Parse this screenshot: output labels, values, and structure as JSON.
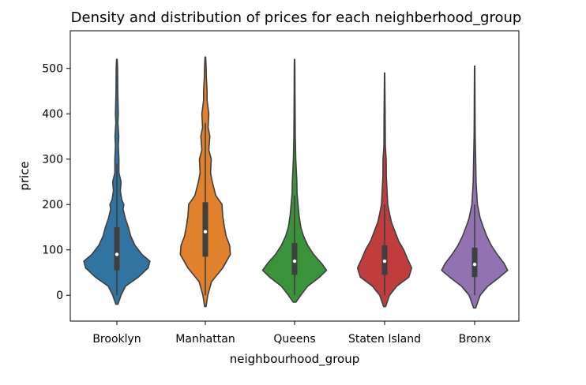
{
  "chart_data": {
    "type": "violin",
    "title": "Density and distribution of prices for each neighberhood_group",
    "xlabel": "neighbourhood_group",
    "ylabel": "price",
    "ylim": [
      -57,
      583
    ],
    "yticks": [
      0,
      100,
      200,
      300,
      400,
      500
    ],
    "ytick_labels": [
      "0",
      "100",
      "200",
      "300",
      "400",
      "500"
    ],
    "categories": [
      "Brooklyn",
      "Manhattan",
      "Queens",
      "Staten Island",
      "Bronx"
    ],
    "series": [
      {
        "name": "Brooklyn",
        "color": "#3274a1",
        "min": -20,
        "max": 520,
        "q1": 55,
        "median": 90,
        "q3": 150,
        "whisker_low": 0,
        "whisker_high": 290,
        "density": [
          [
            -20,
            0.03
          ],
          [
            0,
            0.12
          ],
          [
            20,
            0.25
          ],
          [
            40,
            0.62
          ],
          [
            60,
            0.9
          ],
          [
            75,
            0.95
          ],
          [
            90,
            0.72
          ],
          [
            110,
            0.52
          ],
          [
            130,
            0.4
          ],
          [
            150,
            0.33
          ],
          [
            170,
            0.24
          ],
          [
            190,
            0.18
          ],
          [
            200,
            0.2
          ],
          [
            210,
            0.14
          ],
          [
            230,
            0.1
          ],
          [
            250,
            0.12
          ],
          [
            270,
            0.06
          ],
          [
            300,
            0.06
          ],
          [
            330,
            0.04
          ],
          [
            350,
            0.055
          ],
          [
            380,
            0.03
          ],
          [
            400,
            0.04
          ],
          [
            450,
            0.025
          ],
          [
            500,
            0.02
          ],
          [
            520,
            0.01
          ]
        ]
      },
      {
        "name": "Manhattan",
        "color": "#e1812c",
        "min": -25,
        "max": 525,
        "q1": 85,
        "median": 140,
        "q3": 205,
        "whisker_low": 0,
        "whisker_high": 380,
        "density": [
          [
            -25,
            0.02
          ],
          [
            0,
            0.07
          ],
          [
            30,
            0.18
          ],
          [
            60,
            0.5
          ],
          [
            90,
            0.72
          ],
          [
            110,
            0.7
          ],
          [
            130,
            0.6
          ],
          [
            150,
            0.55
          ],
          [
            175,
            0.5
          ],
          [
            200,
            0.48
          ],
          [
            220,
            0.3
          ],
          [
            250,
            0.2
          ],
          [
            270,
            0.15
          ],
          [
            300,
            0.17
          ],
          [
            320,
            0.1
          ],
          [
            350,
            0.13
          ],
          [
            370,
            0.08
          ],
          [
            400,
            0.1
          ],
          [
            430,
            0.05
          ],
          [
            450,
            0.05
          ],
          [
            480,
            0.03
          ],
          [
            500,
            0.025
          ],
          [
            525,
            0.01
          ]
        ]
      },
      {
        "name": "Queens",
        "color": "#3a923a",
        "min": -15,
        "max": 520,
        "q1": 45,
        "median": 75,
        "q3": 115,
        "whisker_low": 0,
        "whisker_high": 220,
        "density": [
          [
            -15,
            0.04
          ],
          [
            0,
            0.18
          ],
          [
            20,
            0.38
          ],
          [
            40,
            0.72
          ],
          [
            55,
            0.92
          ],
          [
            70,
            0.78
          ],
          [
            90,
            0.55
          ],
          [
            110,
            0.38
          ],
          [
            130,
            0.26
          ],
          [
            150,
            0.18
          ],
          [
            175,
            0.13
          ],
          [
            200,
            0.1
          ],
          [
            225,
            0.07
          ],
          [
            250,
            0.065
          ],
          [
            300,
            0.035
          ],
          [
            350,
            0.02
          ],
          [
            400,
            0.015
          ],
          [
            450,
            0.012
          ],
          [
            500,
            0.01
          ],
          [
            520,
            0.005
          ]
        ]
      },
      {
        "name": "Staten Island",
        "color": "#c03d3e",
        "min": -25,
        "max": 490,
        "q1": 45,
        "median": 75,
        "q3": 110,
        "whisker_low": 0,
        "whisker_high": 200,
        "density": [
          [
            -25,
            0.03
          ],
          [
            0,
            0.14
          ],
          [
            20,
            0.35
          ],
          [
            40,
            0.7
          ],
          [
            60,
            0.78
          ],
          [
            80,
            0.66
          ],
          [
            100,
            0.55
          ],
          [
            120,
            0.4
          ],
          [
            140,
            0.3
          ],
          [
            160,
            0.2
          ],
          [
            180,
            0.14
          ],
          [
            200,
            0.09
          ],
          [
            230,
            0.07
          ],
          [
            260,
            0.05
          ],
          [
            300,
            0.045
          ],
          [
            330,
            0.02
          ],
          [
            400,
            0.015
          ],
          [
            450,
            0.01
          ],
          [
            490,
            0.005
          ]
        ]
      },
      {
        "name": "Bronx",
        "color": "#9372b2",
        "min": -28,
        "max": 505,
        "q1": 40,
        "median": 68,
        "q3": 105,
        "whisker_low": 0,
        "whisker_high": 200,
        "density": [
          [
            -28,
            0.03
          ],
          [
            0,
            0.16
          ],
          [
            20,
            0.38
          ],
          [
            40,
            0.72
          ],
          [
            55,
            0.95
          ],
          [
            70,
            0.85
          ],
          [
            90,
            0.65
          ],
          [
            110,
            0.48
          ],
          [
            130,
            0.35
          ],
          [
            150,
            0.25
          ],
          [
            170,
            0.16
          ],
          [
            200,
            0.08
          ],
          [
            250,
            0.04
          ],
          [
            300,
            0.03
          ],
          [
            350,
            0.015
          ],
          [
            400,
            0.012
          ],
          [
            450,
            0.01
          ],
          [
            505,
            0.005
          ]
        ]
      }
    ]
  }
}
